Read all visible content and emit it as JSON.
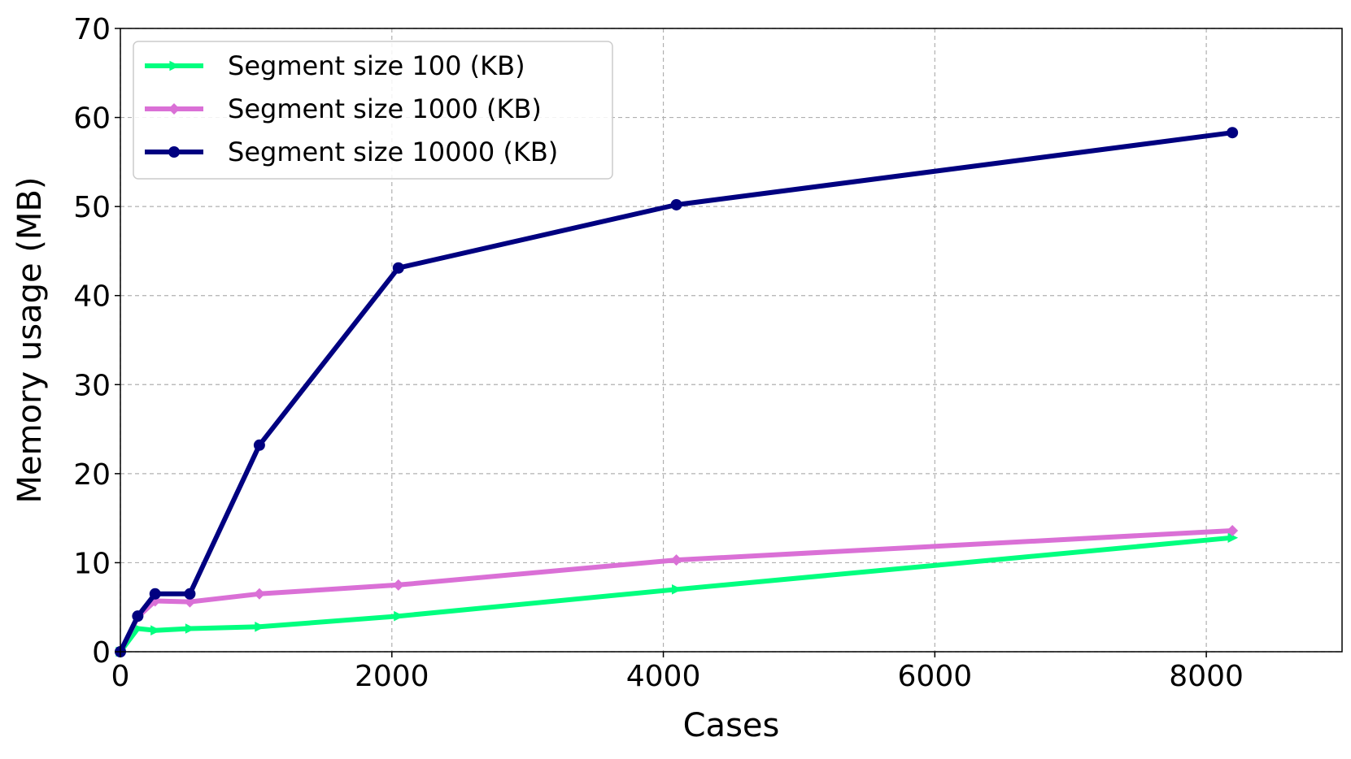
{
  "chart_data": {
    "type": "line",
    "title": "",
    "xlabel": "Cases",
    "ylabel": "Memory usage (MB)",
    "xlim": [
      0,
      9000
    ],
    "ylim": [
      0,
      70
    ],
    "xticks": [
      0,
      2000,
      4000,
      6000,
      8000
    ],
    "yticks": [
      0,
      10,
      20,
      30,
      40,
      50,
      60,
      70
    ],
    "grid": true,
    "legend_position": "top-left",
    "series": [
      {
        "name": "Segment size 100 (KB)",
        "color": "#00ff7f",
        "marker": "triangle-right",
        "x": [
          0,
          128,
          256,
          512,
          1024,
          2048,
          4096,
          8192
        ],
        "y": [
          0,
          2.6,
          2.4,
          2.6,
          2.8,
          4.0,
          7.0,
          12.8
        ]
      },
      {
        "name": "Segment size 1000 (KB)",
        "color": "#da70d6",
        "marker": "diamond",
        "x": [
          0,
          128,
          256,
          512,
          1024,
          2048,
          4096,
          8192
        ],
        "y": [
          0,
          3.9,
          5.7,
          5.6,
          6.5,
          7.5,
          10.3,
          13.6
        ]
      },
      {
        "name": "Segment size 10000 (KB)",
        "color": "#000080",
        "marker": "circle",
        "x": [
          0,
          128,
          256,
          512,
          1024,
          2048,
          4096,
          8192
        ],
        "y": [
          0,
          4.0,
          6.5,
          6.5,
          23.2,
          43.1,
          50.2,
          58.3
        ]
      }
    ]
  }
}
